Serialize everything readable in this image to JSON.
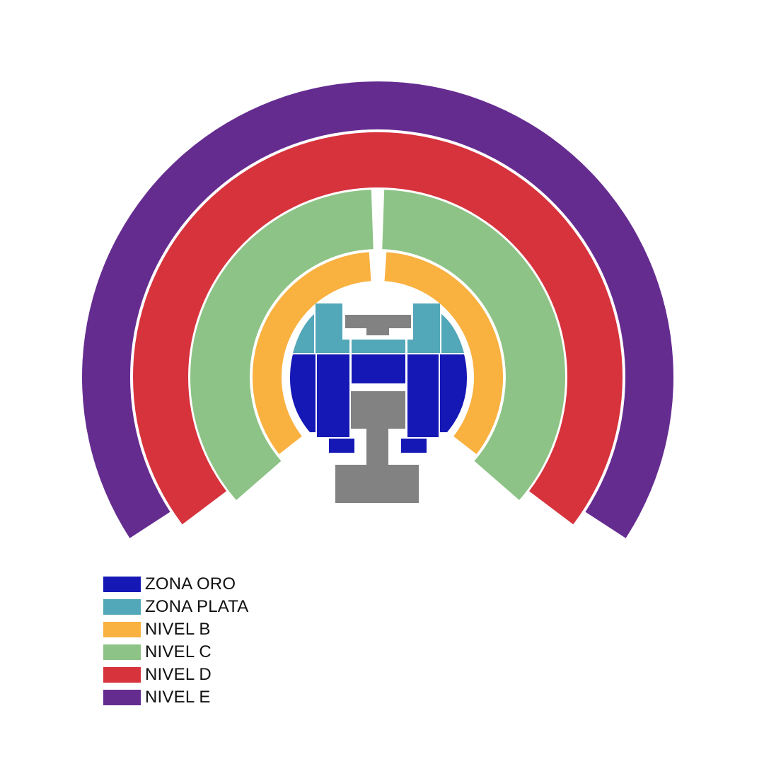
{
  "map": {
    "colors": {
      "zona_oro": "#1618b5",
      "zona_plata": "#52a7b8",
      "nivel_b": "#f9b140",
      "nivel_c": "#8dc386",
      "nivel_d": "#d6333d",
      "nivel_e": "#652c90",
      "stage": "#828282",
      "background": "#ffffff"
    },
    "sections": [
      {
        "id": "nivel-e",
        "label": "NIVEL E"
      },
      {
        "id": "nivel-d",
        "label": "NIVEL D"
      },
      {
        "id": "nivel-c",
        "label": "NIVEL C"
      },
      {
        "id": "nivel-b",
        "label": "NIVEL B"
      },
      {
        "id": "zona-plata",
        "label": "ZONA PLATA"
      },
      {
        "id": "zona-oro",
        "label": "ZONA ORO"
      },
      {
        "id": "stage",
        "label": "STAGE"
      }
    ]
  },
  "legend": {
    "items": [
      {
        "label": "ZONA ORO",
        "color": "#1618b5"
      },
      {
        "label": "ZONA PLATA",
        "color": "#52a7b8"
      },
      {
        "label": "NIVEL B",
        "color": "#f9b140"
      },
      {
        "label": "NIVEL C",
        "color": "#8dc386"
      },
      {
        "label": "NIVEL D",
        "color": "#d6333d"
      },
      {
        "label": "NIVEL E",
        "color": "#652c90"
      }
    ]
  }
}
